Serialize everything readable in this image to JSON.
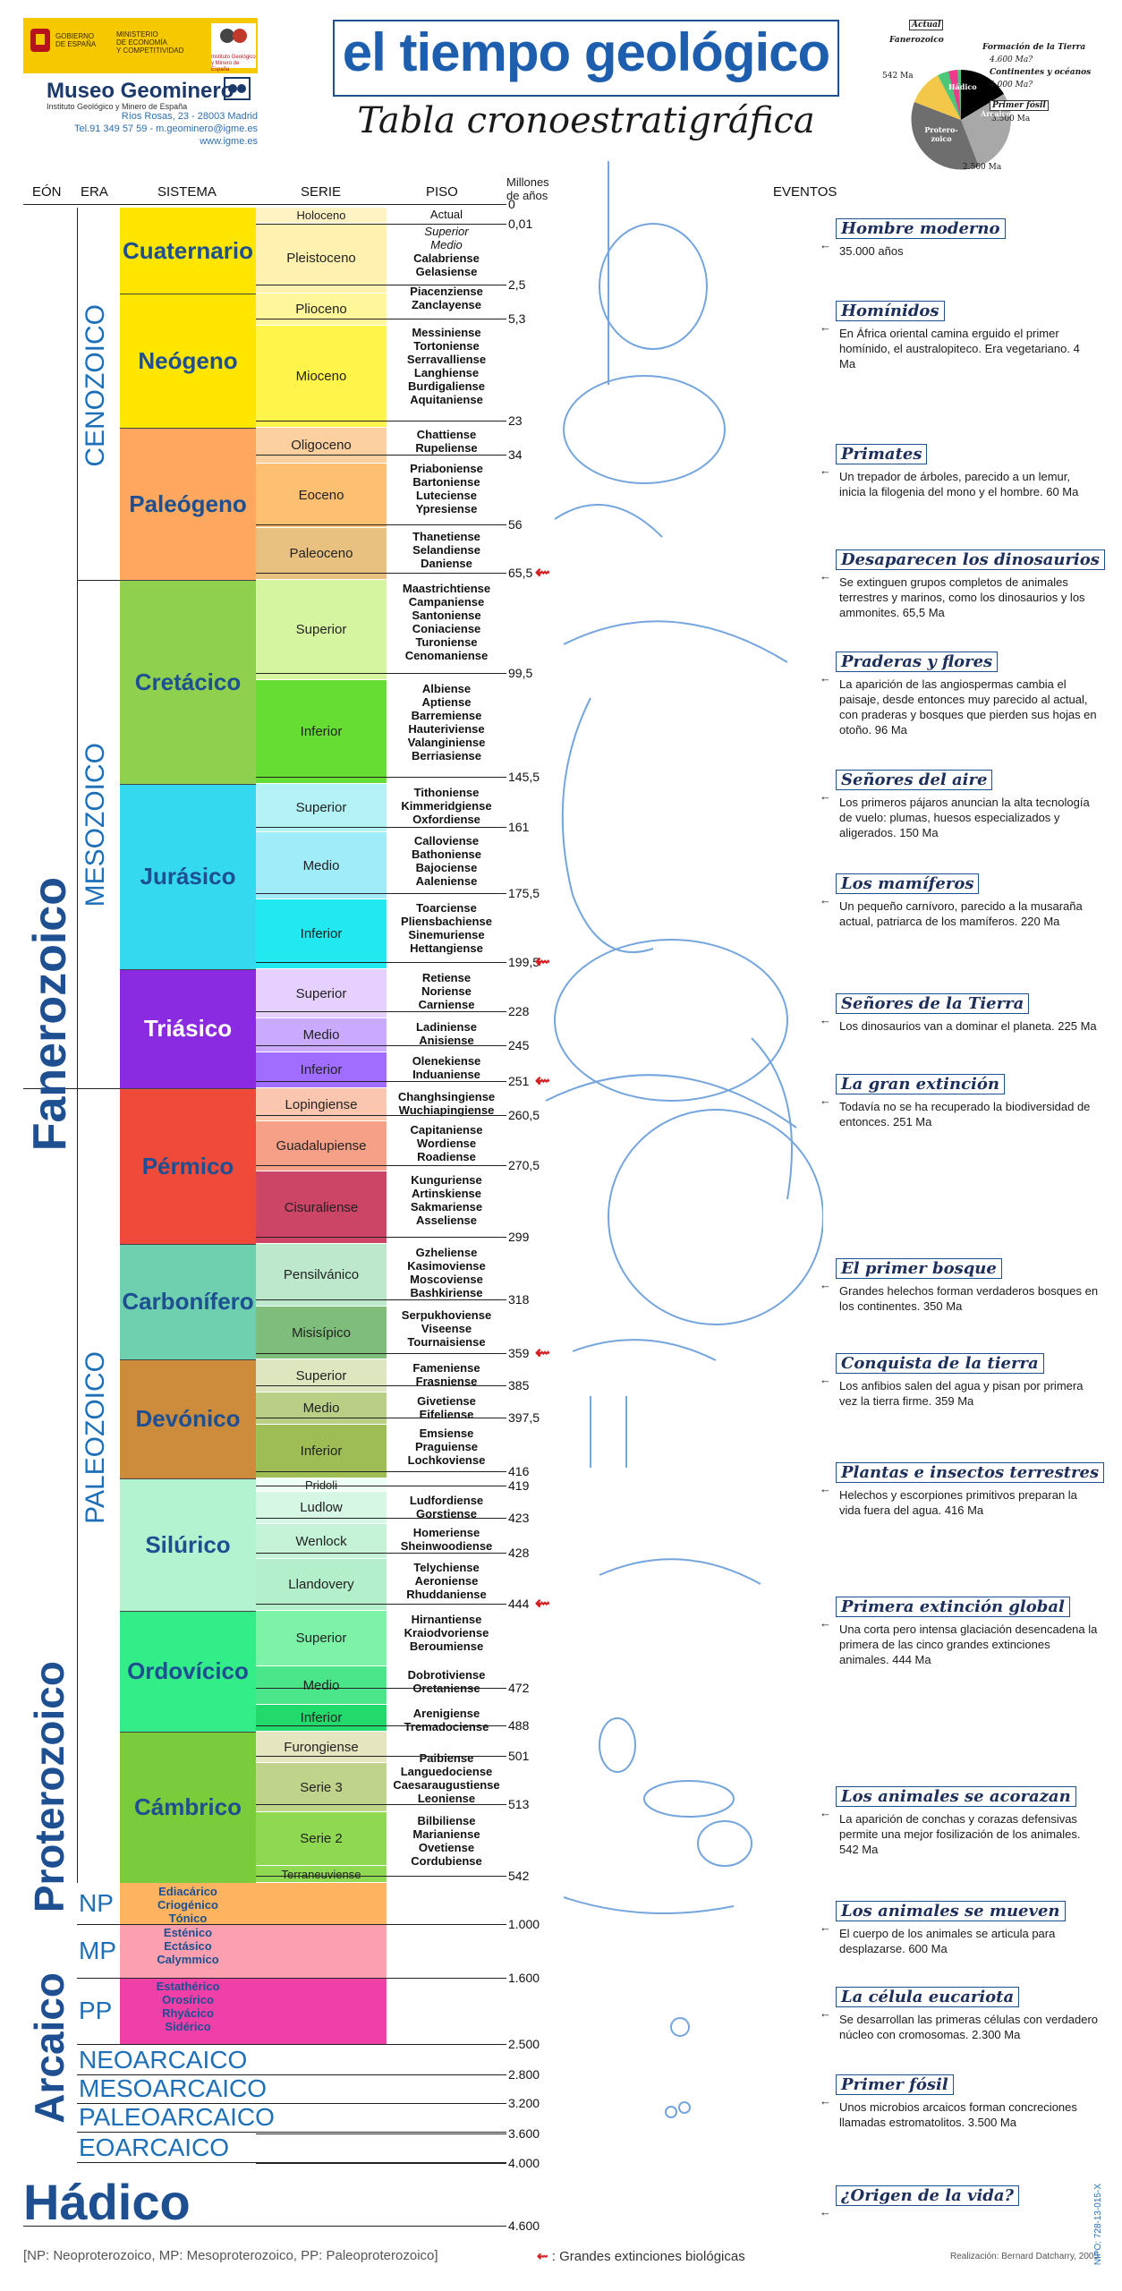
{
  "header": {
    "logo_gov_lines": [
      "GOBIERNO",
      "DE ESPAÑA"
    ],
    "logo_min_lines": [
      "MINISTERIO",
      "DE ECONOMÍA",
      "Y COMPETITIVIDAD"
    ],
    "logo_igme_lines": [
      "Instituto Geológico",
      "y Minero de España"
    ],
    "museum_name": "Museo Geominero",
    "museum_sub": "Instituto Geológico y Minero de España",
    "address": "Ríos Rosas, 23 - 28003 Madrid",
    "phone": "Tel.91 349 57 59 - m.geominero@igme.es",
    "web": "www.igme.es",
    "title": "el tiempo geológico",
    "subtitle": "Tabla cronoestratigráfica"
  },
  "pie": {
    "labels": {
      "actual": "Actual",
      "fanerozoico": "Fanerozoico",
      "formacion": "Formación de la Tierra",
      "formacion_age": "4.600 Ma?",
      "continentes": "Continentes y océanos",
      "continentes_age": "4.000 Ma?",
      "primer_fosil": "Primer fósil",
      "primer_fosil_age": "3.500 Ma",
      "hadico": "Hádico",
      "arcaico": "Arcaico",
      "proterozoico": "Protero-zoico",
      "age_542": "542 Ma",
      "age_2500": "2.500 Ma"
    }
  },
  "columns": {
    "eon": "EÓN",
    "era": "ERA",
    "sistema": "SISTEMA",
    "serie": "SERIE",
    "piso": "PISO",
    "millones_1": "Millones",
    "millones_2": "de años",
    "eventos": "EVENTOS"
  },
  "eons": {
    "fanerozoico": "Fanerozoico",
    "proterozoico": "Proterozoico",
    "arcaico": "Arcaico",
    "hadico": "Hádico"
  },
  "eras": {
    "cenozoico": "CENOZOICO",
    "mesozoico": "MESOZOICO",
    "paleozoico": "PALEOZOICO"
  },
  "systems": [
    "Cuaternario",
    "Neógeno",
    "Paleógeno",
    "Cretácico",
    "Jurásico",
    "Triásico",
    "Pérmico",
    "Carbonífero",
    "Devónico",
    "Silúrico",
    "Ordovícico",
    "Cámbrico"
  ],
  "series": [
    "Holoceno",
    "Pleistoceno",
    "Plioceno",
    "Mioceno",
    "Oligoceno",
    "Eoceno",
    "Paleoceno",
    "Superior",
    "Inferior",
    "Superior",
    "Medio",
    "Inferior",
    "Superior",
    "Medio",
    "Inferior",
    "Lopingiense",
    "Guadalupiense",
    "Cisuraliense",
    "Pensilvánico",
    "Misisípico",
    "Superior",
    "Medio",
    "Inferior",
    "Pridoli",
    "Ludlow",
    "Wenlock",
    "Llandovery",
    "Superior",
    "Medio",
    "Inferior",
    "Furongiense",
    "Serie 3",
    "Serie 2",
    "Terraneuviense"
  ],
  "pisos": [
    [
      "Actual",
      "Superior",
      "Medio",
      "Calabriense",
      "Gelasiense"
    ],
    [
      "Piacenziense",
      "Zanclayense"
    ],
    [
      "Messiniense",
      "Tortoniense",
      "Serravalliense",
      "Langhiense",
      "Burdigaliense",
      "Aquitaniense"
    ],
    [
      "Chattiense",
      "Rupeliense"
    ],
    [
      "Priaboniense",
      "Bartoniense",
      "Luteciense",
      "Ypresiense"
    ],
    [
      "Thanetiense",
      "Selandiense",
      "Daniense"
    ],
    [
      "Maastrichtiense",
      "Campaniense",
      "Santoniense",
      "Coniaciense",
      "Turoniense",
      "Cenomaniense"
    ],
    [
      "Albiense",
      "Aptiense",
      "Barremiense",
      "Hauteriviense",
      "Valanginiense",
      "Berriasiense"
    ],
    [
      "Tithoniense",
      "Kimmeridgiense",
      "Oxfordiense"
    ],
    [
      "Calloviense",
      "Bathoniense",
      "Bajociense",
      "Aaleniense"
    ],
    [
      "Toarciense",
      "Pliensbachiense",
      "Sinemuriense",
      "Hettangiense"
    ],
    [
      "Retiense",
      "Noriense",
      "Carniense"
    ],
    [
      "Ladiniense",
      "Anisiense"
    ],
    [
      "Olenekiense",
      "Induaniense"
    ],
    [
      "Changhsingiense",
      "Wuchiapingiense"
    ],
    [
      "Capitaniense",
      "Wordiense",
      "Roadiense"
    ],
    [
      "Kunguriense",
      "Artinskiense",
      "Sakmariense",
      "Asseliense"
    ],
    [
      "Gzheliense",
      "Kasimoviense",
      "Moscoviense",
      "Bashkiriense"
    ],
    [
      "Serpukhoviense",
      "Viseense",
      "Tournaisiense"
    ],
    [
      "Fameniense",
      "Frasniense"
    ],
    [
      "Givetiense",
      "Eifeliense"
    ],
    [
      "Emsiense",
      "Praguiense",
      "Lochkoviense"
    ],
    [
      "Ludfordiense",
      "Gorstiense"
    ],
    [
      "Homeriense",
      "Sheinwoodiense"
    ],
    [
      "Telychiense",
      "Aeroniense",
      "Rhuddaniense"
    ],
    [
      "Hirnantiense",
      "Kraiodvoriense",
      "Beroumiense"
    ],
    [
      "Dobrotiviense",
      "Oretaniense"
    ],
    [
      "Arenigiense",
      "Tremadociense"
    ],
    [
      "Paibiense"
    ],
    [
      "Languedociense",
      "Caesaraugustiense",
      "Leoniense"
    ],
    [
      "Bilbiliense",
      "Marianiense",
      "Ovetiense",
      "Cordubiense"
    ]
  ],
  "precambrian": {
    "np": "NP",
    "mp": "MP",
    "pp": "PP",
    "np_pisos": [
      "Ediacárico",
      "Criogénico",
      "Tónico"
    ],
    "mp_pisos": [
      "Esténico",
      "Ectásico",
      "Calymmico"
    ],
    "pp_pisos": [
      "Estathérico",
      "Orosírico",
      "Rhyácico",
      "Sidérico"
    ],
    "arcaico_eras": [
      "NEOARCAICO",
      "MESOARCAICO",
      "PALEOARCAICO",
      "EOARCAICO"
    ]
  },
  "ages": [
    "0",
    "0,01",
    "2,5",
    "5,3",
    "23",
    "34",
    "56",
    "65,5",
    "99,5",
    "145,5",
    "161",
    "175,5",
    "199,5",
    "228",
    "245",
    "251",
    "260,5",
    "270,5",
    "299",
    "318",
    "359",
    "385",
    "397,5",
    "416",
    "419",
    "423",
    "428",
    "444",
    "472",
    "488",
    "501",
    "513",
    "542",
    "1.000",
    "1.600",
    "2.500",
    "2.800",
    "3.200",
    "3.600",
    "4.000",
    "4.600"
  ],
  "events": [
    {
      "title": "Hombre moderno",
      "desc": "35.000 años"
    },
    {
      "title": "Homínidos",
      "desc": "En África oriental camina erguido el primer homínido, el australopiteco. Era vegetariano. 4 Ma"
    },
    {
      "title": "Primates",
      "desc": "Un trepador de árboles, parecido a un lemur, inicia la filogenia del mono y el hombre. 60 Ma"
    },
    {
      "title": "Desaparecen los dinosaurios",
      "desc": "Se extinguen grupos completos de animales terrestres y marinos, como los dinosaurios y los ammonites. 65,5 Ma"
    },
    {
      "title": "Praderas y flores",
      "desc": "La aparición de las angiospermas cambia el paisaje, desde entonces muy parecido al actual, con praderas y bosques que pierden sus hojas en otoño. 96 Ma"
    },
    {
      "title": "Señores del aire",
      "desc": "Los primeros pájaros anuncian la alta tecnología de vuelo: plumas, huesos especializados y aligerados. 150 Ma"
    },
    {
      "title": "Los mamíferos",
      "desc": "Un pequeño carnívoro, parecido a la musaraña actual, patriarca de los mamíferos. 220 Ma"
    },
    {
      "title": "Señores de la Tierra",
      "desc": "Los dinosaurios van a dominar el planeta. 225 Ma"
    },
    {
      "title": "La gran extinción",
      "desc": "Todavía no se ha recuperado la biodiversidad de entonces. 251 Ma"
    },
    {
      "title": "El primer bosque",
      "desc": "Grandes helechos forman verdaderos bosques en los continentes. 350 Ma"
    },
    {
      "title": "Conquista de la tierra",
      "desc": "Los anfibios salen del agua y pisan por primera vez la tierra firme. 359 Ma"
    },
    {
      "title": "Plantas e insectos terrestres",
      "desc": "Helechos y escorpiones primitivos preparan la vida fuera del agua. 416 Ma"
    },
    {
      "title": "Primera extinción global",
      "desc": "Una corta pero intensa glaciación desencadena la primera de las cinco grandes extinciones animales. 444 Ma"
    },
    {
      "title": "Los animales se acorazan",
      "desc": "La aparición de conchas y corazas defensivas permite una mejor fosilización de los animales. 542 Ma"
    },
    {
      "title": "Los animales se mueven",
      "desc": "El cuerpo de los animales se articula para desplazarse. 600 Ma"
    },
    {
      "title": "La célula eucariota",
      "desc": "Se desarrollan las primeras células con verdadero núcleo con cromosomas. 2.300 Ma"
    },
    {
      "title": "Primer fósil",
      "desc": "Unos microbios arcaicos forman concreciones llamadas estromatolitos. 3.500 Ma"
    },
    {
      "title": "¿Origen de la vida?",
      "desc": ""
    }
  ],
  "footer": {
    "footnote": "[NP: Neoproterozoico, MP: Mesoproterozoico, PP: Paleoproterozoico]",
    "extinction_legend": ": Grandes extinciones biológicas",
    "credit": "Realización: Bernard Datcharry, 2005",
    "nipo": "NIPO: 728-13-015-X"
  },
  "colors": {
    "title_blue": "#1d5fae",
    "era_blue": "#1d6fb8",
    "extinction_red": "#d42020",
    "cuaternario": "#ffe600",
    "neogeno": "#ffe600",
    "paleogeno": "#fda75f",
    "cretacico": "#8fd14f",
    "jurasico": "#34d9f0",
    "triasico": "#8a2be2",
    "permico": "#f04a3a",
    "carbonifero": "#6fd0b0",
    "devonico": "#cc8c3c",
    "silurico": "#b3f3d0",
    "ordovicico": "#33ee88",
    "cambrico": "#7acc3a"
  }
}
